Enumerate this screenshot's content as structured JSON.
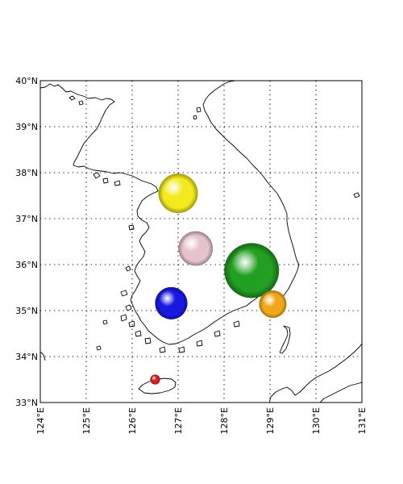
{
  "map": {
    "lon_range": [
      124,
      131
    ],
    "lat_range": [
      33,
      40
    ],
    "lon_ticks": [
      {
        "value": 124,
        "label": "124°E"
      },
      {
        "value": 125,
        "label": "125°E"
      },
      {
        "value": 126,
        "label": "126°E"
      },
      {
        "value": 127,
        "label": "127°E"
      },
      {
        "value": 128,
        "label": "128°E"
      },
      {
        "value": 129,
        "label": "129°E"
      },
      {
        "value": 130,
        "label": "130°E"
      },
      {
        "value": 131,
        "label": "131°E"
      }
    ],
    "lat_ticks": [
      {
        "value": 33,
        "label": "33°N"
      },
      {
        "value": 34,
        "label": "34°N"
      },
      {
        "value": 35,
        "label": "35°N"
      },
      {
        "value": 36,
        "label": "36°N"
      },
      {
        "value": 37,
        "label": "37°N"
      },
      {
        "value": 38,
        "label": "38°N"
      },
      {
        "value": 39,
        "label": "39°N"
      },
      {
        "value": 40,
        "label": "40°N"
      }
    ],
    "grid": true,
    "grid_style": "dotted",
    "coastline_color": "#000000"
  },
  "bubbles": [
    {
      "lon": 127.0,
      "lat": 37.55,
      "relative_size": 0.72,
      "color": "#f2ea1c"
    },
    {
      "lon": 127.38,
      "lat": 36.35,
      "relative_size": 0.63,
      "color": "#e6c3cc"
    },
    {
      "lon": 128.6,
      "lat": 35.87,
      "relative_size": 1.0,
      "color": "#22a022"
    },
    {
      "lon": 126.85,
      "lat": 35.16,
      "relative_size": 0.59,
      "color": "#1818e0"
    },
    {
      "lon": 129.06,
      "lat": 35.14,
      "relative_size": 0.5,
      "color": "#f0a818"
    },
    {
      "lon": 126.5,
      "lat": 33.5,
      "relative_size": 0.18,
      "color": "#d02020"
    }
  ]
}
